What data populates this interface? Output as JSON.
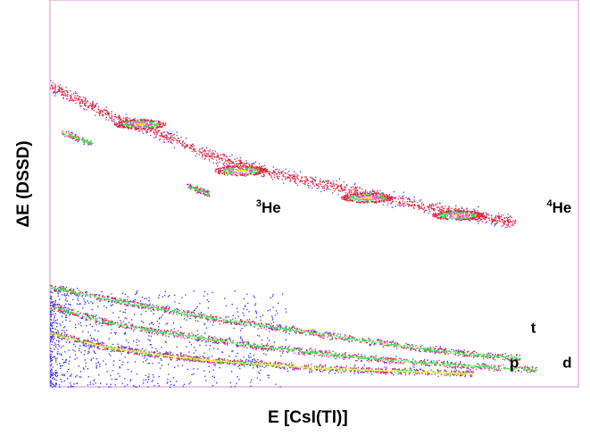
{
  "chart_data": {
    "type": "scatter",
    "xlabel": "E [CsI(Tl)]",
    "ylabel": "ΔE (DSSD)",
    "grid": false,
    "legend": "none",
    "frame_color": "#dd88dd",
    "density_colors": [
      "#2a2aff",
      "#8a2be2",
      "#e0203a",
      "#3cd84a",
      "#ffe030",
      "#ff44ff"
    ],
    "annotations": [
      {
        "sup": "3",
        "text": "He",
        "x": 0.39,
        "y": 0.45
      },
      {
        "sup": "4",
        "text": "He",
        "x": 0.94,
        "y": 0.45
      },
      {
        "sup": "",
        "text": "t",
        "x": 0.91,
        "y": 0.14
      },
      {
        "sup": "",
        "text": "p",
        "x": 0.87,
        "y": 0.05
      },
      {
        "sup": "",
        "text": "d",
        "x": 0.97,
        "y": 0.05
      }
    ],
    "bands": [
      {
        "name": "alpha",
        "points": [
          [
            0.0,
            0.78
          ],
          [
            0.1,
            0.71
          ],
          [
            0.2,
            0.66
          ],
          [
            0.3,
            0.6
          ],
          [
            0.4,
            0.56
          ],
          [
            0.5,
            0.53
          ],
          [
            0.6,
            0.5
          ],
          [
            0.7,
            0.47
          ],
          [
            0.8,
            0.445
          ],
          [
            0.88,
            0.425
          ]
        ]
      },
      {
        "name": "he3",
        "points": [
          [
            0.02,
            0.66
          ],
          [
            0.04,
            0.65
          ],
          [
            0.06,
            0.64
          ],
          [
            0.08,
            0.63
          ]
        ]
      },
      {
        "name": "he3b",
        "points": [
          [
            0.26,
            0.52
          ],
          [
            0.28,
            0.51
          ],
          [
            0.3,
            0.5
          ]
        ]
      },
      {
        "name": "triton",
        "points": [
          [
            0.0,
            0.26
          ],
          [
            0.1,
            0.23
          ],
          [
            0.2,
            0.205
          ],
          [
            0.3,
            0.18
          ],
          [
            0.4,
            0.16
          ],
          [
            0.5,
            0.14
          ],
          [
            0.6,
            0.12
          ],
          [
            0.7,
            0.1
          ],
          [
            0.8,
            0.085
          ],
          [
            0.89,
            0.075
          ]
        ]
      },
      {
        "name": "deuteron",
        "points": [
          [
            0.0,
            0.21
          ],
          [
            0.1,
            0.17
          ],
          [
            0.2,
            0.145
          ],
          [
            0.3,
            0.125
          ],
          [
            0.4,
            0.105
          ],
          [
            0.5,
            0.09
          ],
          [
            0.6,
            0.075
          ],
          [
            0.7,
            0.065
          ],
          [
            0.8,
            0.055
          ],
          [
            0.92,
            0.045
          ]
        ]
      },
      {
        "name": "proton",
        "points": [
          [
            0.0,
            0.14
          ],
          [
            0.1,
            0.105
          ],
          [
            0.2,
            0.085
          ],
          [
            0.3,
            0.07
          ],
          [
            0.4,
            0.06
          ],
          [
            0.5,
            0.05
          ],
          [
            0.6,
            0.045
          ],
          [
            0.7,
            0.04
          ],
          [
            0.8,
            0.035
          ]
        ]
      }
    ],
    "hotspots": [
      {
        "x": 0.36,
        "y": 0.56
      },
      {
        "x": 0.6,
        "y": 0.49
      },
      {
        "x": 0.77,
        "y": 0.445
      },
      {
        "x": 0.17,
        "y": 0.68
      }
    ]
  }
}
